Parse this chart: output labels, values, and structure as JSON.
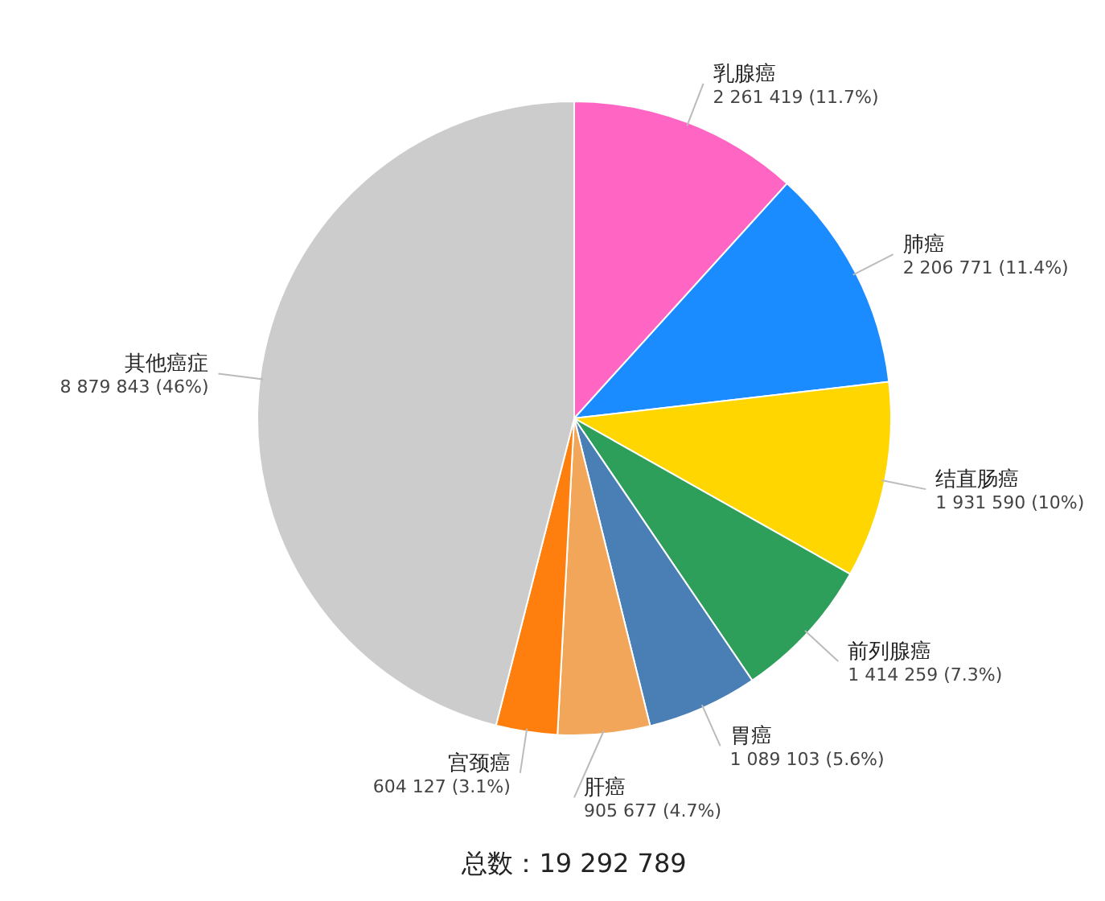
{
  "chart_data": {
    "type": "pie",
    "categories": [
      "乳腺癌",
      "肺癌",
      "结直肠癌",
      "前列腺癌",
      "胃癌",
      "肝癌",
      "宫颈癌",
      "其他癌症"
    ],
    "values": [
      2261419,
      2206771,
      1931590,
      1414259,
      1089103,
      905677,
      604127,
      8879843
    ],
    "value_labels": [
      "2 261 419 (11.7%)",
      "2 206 771 (11.4%)",
      "1 931 590 (10%)",
      "1 414 259 (7.3%)",
      "1 089 103 (5.6%)",
      "905 677 (4.7%)",
      "604 127 (3.1%)",
      "8 879 843 (46%)"
    ],
    "colors": [
      "#ff66c4",
      "#1a8cff",
      "#ffd600",
      "#2e9e5b",
      "#4a7fb5",
      "#f2a65a",
      "#ff7f0e",
      "#cccccc"
    ],
    "annotations": [
      "总数：19 292 789"
    ]
  }
}
